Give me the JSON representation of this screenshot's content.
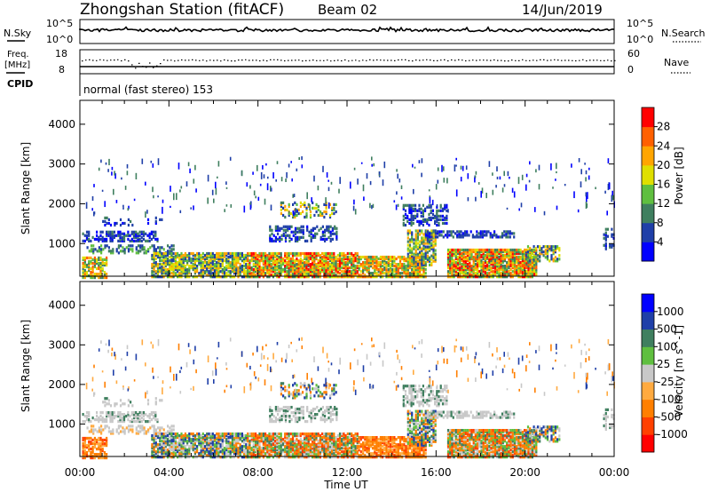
{
  "header": {
    "title": "Zhongshan Station (fitACF)",
    "beam": "Beam 02",
    "date": "14/Jun/2019"
  },
  "noise_panel": {
    "left_label": "N.Sky",
    "left_ticks": [
      "10^5",
      "10^0"
    ],
    "right_label": "N.Search",
    "right_ticks": [
      "10^5",
      "10^0"
    ]
  },
  "freq_panel": {
    "left_label_line1": "Freq.",
    "left_label_line2": "[MHz]",
    "left_ticks": [
      "18",
      "8"
    ],
    "right_label": "Nave",
    "right_ticks": [
      "60",
      "0"
    ]
  },
  "cpid": {
    "label": "CPID",
    "text": "normal (fast stereo) 153"
  },
  "colors": {
    "power_scale": [
      "#0000ff",
      "#1f3fa8",
      "#3f7f5f",
      "#5fbf3f",
      "#dfdf00",
      "#ffa500",
      "#ff6000",
      "#ff0000"
    ],
    "velocity_scale": [
      "#ff0000",
      "#ff4000",
      "#ff7f00",
      "#ffaa40",
      "#c8c8c8",
      "#5fbf3f",
      "#3f7f5f",
      "#1f3fa8",
      "#0000ff"
    ]
  },
  "chart_data": [
    {
      "type": "heatmap",
      "title": "",
      "xlabel": "",
      "ylabel": "Slant Range [km]",
      "ylim": [
        180,
        4600
      ],
      "y_ticks": [
        "1000",
        "2000",
        "3000",
        "4000"
      ],
      "colorbar_label": "Power [dB]",
      "colorbar_ticks": [
        "4",
        "8",
        "12",
        "16",
        "20",
        "24",
        "28"
      ]
    },
    {
      "type": "heatmap",
      "title": "",
      "xlabel": "Time UT",
      "ylabel": "Slant Range [km]",
      "ylim": [
        180,
        4600
      ],
      "y_ticks": [
        "1000",
        "2000",
        "3000",
        "4000"
      ],
      "x_ticks": [
        "00:00",
        "04:00",
        "08:00",
        "12:00",
        "16:00",
        "20:00",
        "00:00"
      ],
      "colorbar_label": "Velocity [m s^-1]",
      "colorbar_ticks": [
        "1000",
        "500",
        "100",
        "25",
        "-25",
        "-100",
        "-500",
        "-1000"
      ]
    }
  ]
}
